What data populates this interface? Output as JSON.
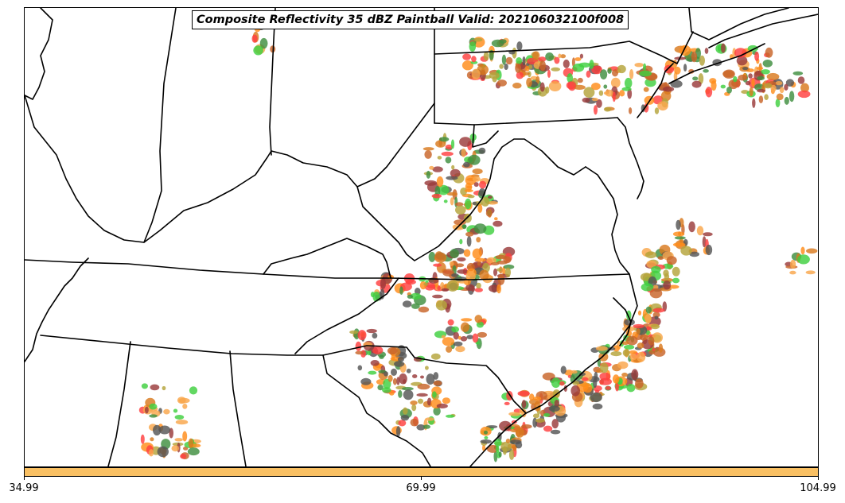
{
  "title": "Composite Reflectivity 35 dBZ Paintball Valid: 202106032100f008",
  "colorbar": {
    "color": "#f9c063",
    "ticks": [
      "34.99",
      "69.99",
      "104.99"
    ]
  },
  "paint_colors": [
    "#ff4040",
    "#ff8c1a",
    "#f9a64a",
    "#d97a1e",
    "#b5a43a",
    "#9a3a3a",
    "#3f8f3f",
    "#40d040",
    "#555555",
    "#c86428"
  ],
  "basemap": {
    "line_color": "#000000",
    "background": "#ffffff"
  }
}
